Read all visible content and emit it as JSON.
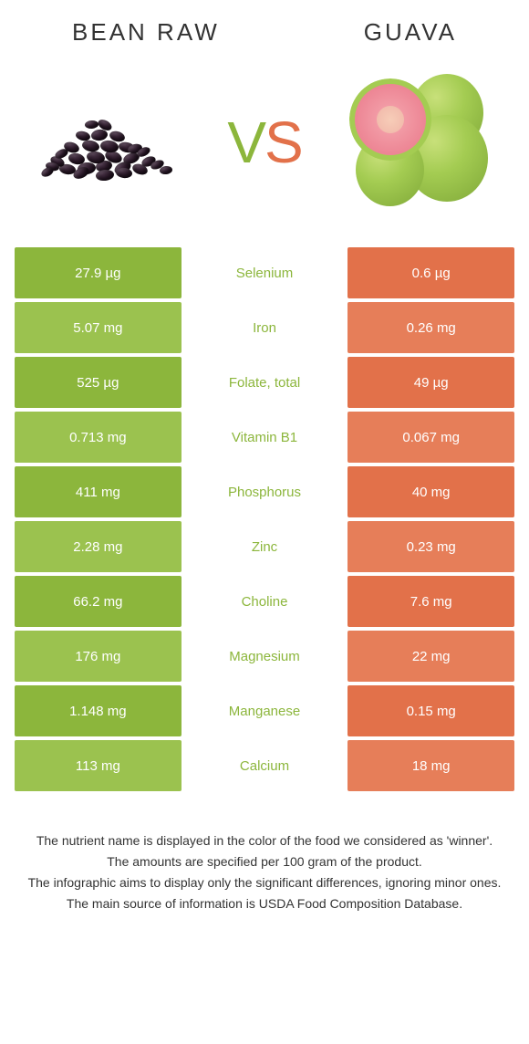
{
  "colors": {
    "left": "#8cb63c",
    "right": "#e2714a",
    "left_alt": "#9bc24f",
    "right_alt": "#e67e59"
  },
  "header": {
    "left_title": "BEAN RAW",
    "right_title": "GUAVA",
    "vs": "VS"
  },
  "rows": [
    {
      "left": "27.9 µg",
      "name": "Selenium",
      "right": "0.6 µg",
      "winner": "left"
    },
    {
      "left": "5.07 mg",
      "name": "Iron",
      "right": "0.26 mg",
      "winner": "left"
    },
    {
      "left": "525 µg",
      "name": "Folate, total",
      "right": "49 µg",
      "winner": "left"
    },
    {
      "left": "0.713 mg",
      "name": "Vitamin B1",
      "right": "0.067 mg",
      "winner": "left"
    },
    {
      "left": "411 mg",
      "name": "Phosphorus",
      "right": "40 mg",
      "winner": "left"
    },
    {
      "left": "2.28 mg",
      "name": "Zinc",
      "right": "0.23 mg",
      "winner": "left"
    },
    {
      "left": "66.2 mg",
      "name": "Choline",
      "right": "7.6 mg",
      "winner": "left"
    },
    {
      "left": "176 mg",
      "name": "Magnesium",
      "right": "22 mg",
      "winner": "left"
    },
    {
      "left": "1.148 mg",
      "name": "Manganese",
      "right": "0.15 mg",
      "winner": "left"
    },
    {
      "left": "113 mg",
      "name": "Calcium",
      "right": "18 mg",
      "winner": "left"
    }
  ],
  "footer": {
    "line1": "The nutrient name is displayed in the color of the food we considered as 'winner'.",
    "line2": "The amounts are specified per 100 gram of the product.",
    "line3": "The infographic aims to display only the significant differences, ignoring minor ones.",
    "line4": "The main source of information is USDA Food Composition Database."
  }
}
